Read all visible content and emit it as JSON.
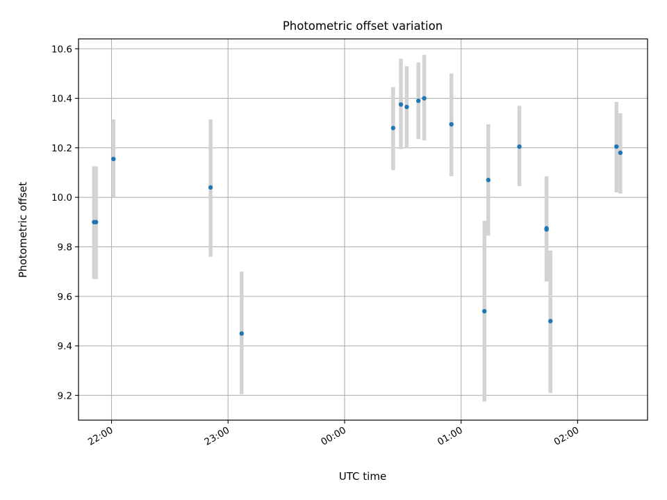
{
  "chart_data": {
    "type": "scatter",
    "title": "Photometric offset variation",
    "xlabel": "UTC time",
    "ylabel": "Photometric offset",
    "x_ticks": [
      "22:00",
      "23:00",
      "00:00",
      "01:00",
      "02:00"
    ],
    "x_tick_times": [
      "22:00",
      "23:00",
      "00:00",
      "01:00",
      "02:00"
    ],
    "xlim": [
      "21:43",
      "02:36"
    ],
    "y_ticks": [
      9.2,
      9.4,
      9.6,
      9.8,
      10.0,
      10.2,
      10.4,
      10.6
    ],
    "ylim": [
      9.1,
      10.64
    ],
    "grid": true,
    "error_bar_color": "#d3d3d3",
    "marker_color": "#1f77b4",
    "points": [
      {
        "time": "21:51",
        "y": 9.9,
        "yerr_low": 9.67,
        "yerr_high": 10.125
      },
      {
        "time": "21:52",
        "y": 9.9,
        "yerr_low": 9.67,
        "yerr_high": 10.125
      },
      {
        "time": "22:01",
        "y": 10.155,
        "yerr_low": 10.0,
        "yerr_high": 10.315
      },
      {
        "time": "22:51",
        "y": 10.04,
        "yerr_low": 9.76,
        "yerr_high": 10.315
      },
      {
        "time": "23:07",
        "y": 9.45,
        "yerr_low": 9.205,
        "yerr_high": 9.7
      },
      {
        "time": "00:25",
        "y": 10.28,
        "yerr_low": 10.11,
        "yerr_high": 10.445
      },
      {
        "time": "00:29",
        "y": 10.375,
        "yerr_low": 10.195,
        "yerr_high": 10.56
      },
      {
        "time": "00:32",
        "y": 10.365,
        "yerr_low": 10.2,
        "yerr_high": 10.53
      },
      {
        "time": "00:38",
        "y": 10.39,
        "yerr_low": 10.235,
        "yerr_high": 10.545
      },
      {
        "time": "00:41",
        "y": 10.4,
        "yerr_low": 10.23,
        "yerr_high": 10.575
      },
      {
        "time": "00:55",
        "y": 10.295,
        "yerr_low": 10.085,
        "yerr_high": 10.5
      },
      {
        "time": "01:12",
        "y": 9.54,
        "yerr_low": 9.175,
        "yerr_high": 9.905
      },
      {
        "time": "01:14",
        "y": 10.07,
        "yerr_low": 9.845,
        "yerr_high": 10.295
      },
      {
        "time": "01:30",
        "y": 10.205,
        "yerr_low": 10.045,
        "yerr_high": 10.37
      },
      {
        "time": "01:44",
        "y": 9.875,
        "yerr_low": 9.665,
        "yerr_high": 10.085
      },
      {
        "time": "01:44",
        "y": 9.87,
        "yerr_low": 9.66,
        "yerr_high": 10.085
      },
      {
        "time": "01:46",
        "y": 9.5,
        "yerr_low": 9.21,
        "yerr_high": 9.785
      },
      {
        "time": "02:20",
        "y": 10.205,
        "yerr_low": 10.02,
        "yerr_high": 10.385
      },
      {
        "time": "02:22",
        "y": 10.18,
        "yerr_low": 10.015,
        "yerr_high": 10.34
      }
    ]
  }
}
